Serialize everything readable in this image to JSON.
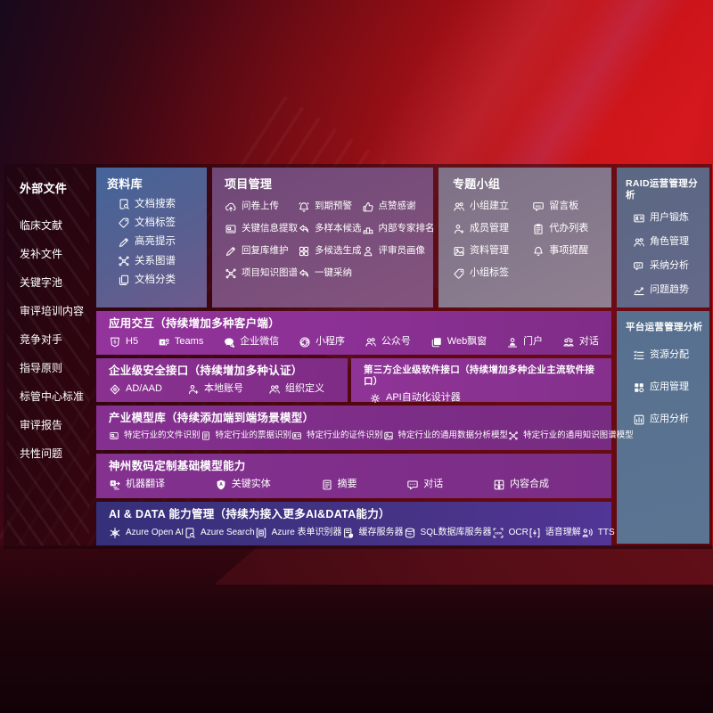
{
  "palette": {
    "bg_red": "#b80d11",
    "panel_blue": "#1a5795",
    "panel_bluegray": "#5b7492",
    "panel_mauve": "#7a4e7b",
    "panel_graylilac": "#887a8d",
    "row_purple": "#8a3093",
    "row_indigo": "#463386",
    "text": "#ffffff"
  },
  "external": {
    "title": "外部文件",
    "items": [
      "临床文献",
      "发补文件",
      "关键字池",
      "审评培训内容",
      "竞争对手",
      "指导原则",
      "标管中心标准",
      "审评报告",
      "共性问题"
    ]
  },
  "repo": {
    "title": "资料库",
    "items": [
      {
        "label": "文档搜索",
        "icon": "doc-search-icon"
      },
      {
        "label": "文档标签",
        "icon": "tag-icon"
      },
      {
        "label": "高亮提示",
        "icon": "pencil-icon"
      },
      {
        "label": "关系图谱",
        "icon": "graph-icon"
      },
      {
        "label": "文档分类",
        "icon": "docs-icon"
      }
    ]
  },
  "project": {
    "title": "项目管理",
    "items": [
      {
        "label": "问卷上传",
        "icon": "cloud-upload-icon"
      },
      {
        "label": "到期预警",
        "icon": "alarm-icon"
      },
      {
        "label": "点赞感谢",
        "icon": "thumbs-up-icon"
      },
      {
        "label": "关键信息提取",
        "icon": "card-text-icon"
      },
      {
        "label": "多样本候选",
        "icon": "reply-arrow-icon"
      },
      {
        "label": "内部专家排名",
        "icon": "podium-icon"
      },
      {
        "label": "回复库维护",
        "icon": "pencil-icon"
      },
      {
        "label": "多候选生成",
        "icon": "grid-icon"
      },
      {
        "label": "评审员画像",
        "icon": "person-icon"
      },
      {
        "label": "项目知识图谱",
        "icon": "graph-icon"
      },
      {
        "label": "一键采纳",
        "icon": "reply-arrow-icon"
      }
    ]
  },
  "group": {
    "title": "专题小组",
    "items": [
      {
        "label": "小组建立",
        "icon": "people-icon"
      },
      {
        "label": "留言板",
        "icon": "bbs-icon"
      },
      {
        "label": "成员管理",
        "icon": "person-add-icon"
      },
      {
        "label": "代办列表",
        "icon": "clipboard-icon"
      },
      {
        "label": "资料管理",
        "icon": "photo-icon"
      },
      {
        "label": "事项提醒",
        "icon": "bell-icon"
      },
      {
        "label": "小组标签",
        "icon": "tag-icon"
      }
    ]
  },
  "raid": {
    "title": "RAID运营管理分析",
    "items": [
      {
        "label": "用户锻炼",
        "icon": "id-card-icon"
      },
      {
        "label": "角色管理",
        "icon": "people-icon"
      },
      {
        "label": "采纳分析",
        "icon": "qa-chat-icon"
      },
      {
        "label": "问题趋势",
        "icon": "trend-chart-icon"
      }
    ]
  },
  "platform": {
    "title": "平台运营管理分析",
    "items": [
      {
        "label": "资源分配",
        "icon": "task-list-icon"
      },
      {
        "label": "应用管理",
        "icon": "apps-grid-icon"
      },
      {
        "label": "应用分析",
        "icon": "app-chart-icon"
      }
    ]
  },
  "interaction": {
    "title": "应用交互（持续增加多种客户端）",
    "items": [
      {
        "label": "H5",
        "icon": "h5-icon"
      },
      {
        "label": "Teams",
        "icon": "teams-icon"
      },
      {
        "label": "企业微信",
        "icon": "wecom-icon"
      },
      {
        "label": "小程序",
        "icon": "miniprogram-icon"
      },
      {
        "label": "公众号",
        "icon": "official-account-icon"
      },
      {
        "label": "Web飘窗",
        "icon": "web-window-icon"
      },
      {
        "label": "门户",
        "icon": "portal-icon"
      },
      {
        "label": "对话",
        "icon": "dialog-icon"
      }
    ]
  },
  "security": {
    "title": "企业级安全接口（持续增加多种认证）",
    "items": [
      {
        "label": "AD/AAD",
        "icon": "shield-icon"
      },
      {
        "label": "本地账号",
        "icon": "local-account-icon"
      },
      {
        "label": "组织定义",
        "icon": "org-icon"
      }
    ]
  },
  "thirdparty": {
    "title": "第三方企业级软件接口（持续增加多种企业主流软件接口）",
    "items": [
      {
        "label": "API自动化设计器",
        "icon": "api-gear-icon"
      }
    ]
  },
  "industry": {
    "title": "产业模型库（持续添加端到端场景模型）",
    "items": [
      {
        "label": "特定行业的文件识别",
        "icon": "file-recognition-icon"
      },
      {
        "label": "特定行业的票据识别",
        "icon": "receipt-recognition-icon"
      },
      {
        "label": "特定行业的证件识别",
        "icon": "id-card-icon"
      },
      {
        "label": "特定行业的通用数据分析模型",
        "icon": "data-analysis-model-icon"
      },
      {
        "label": "特定行业的通用知识图谱模型",
        "icon": "knowledge-graph-icon"
      }
    ]
  },
  "basemodel": {
    "title": "神州数码定制基础模型能力",
    "items": [
      {
        "label": "机器翻译",
        "icon": "translate-icon"
      },
      {
        "label": "关键实体",
        "icon": "entity-shield-icon"
      },
      {
        "label": "摘要",
        "icon": "summary-doc-icon"
      },
      {
        "label": "对话",
        "icon": "chat-bubble-icon"
      },
      {
        "label": "内容合成",
        "icon": "compose-icon"
      }
    ]
  },
  "aidata": {
    "title": "AI & DATA 能力管理（持续为接入更多AI&DATA能力）",
    "items": [
      {
        "label": "Azure Open AI",
        "icon": "openai-icon"
      },
      {
        "label": "Azure Search",
        "icon": "azure-search-icon"
      },
      {
        "label": "Azure 表单识别器",
        "icon": "form-recognizer-icon"
      },
      {
        "label": "缓存服务器",
        "icon": "cache-server-icon"
      },
      {
        "label": "SQL数据库服务器",
        "icon": "sql-database-icon"
      },
      {
        "label": "OCR",
        "icon": "ocr-icon"
      },
      {
        "label": "语音理解",
        "icon": "speech-icon"
      },
      {
        "label": "TTS",
        "icon": "tts-icon"
      }
    ]
  }
}
